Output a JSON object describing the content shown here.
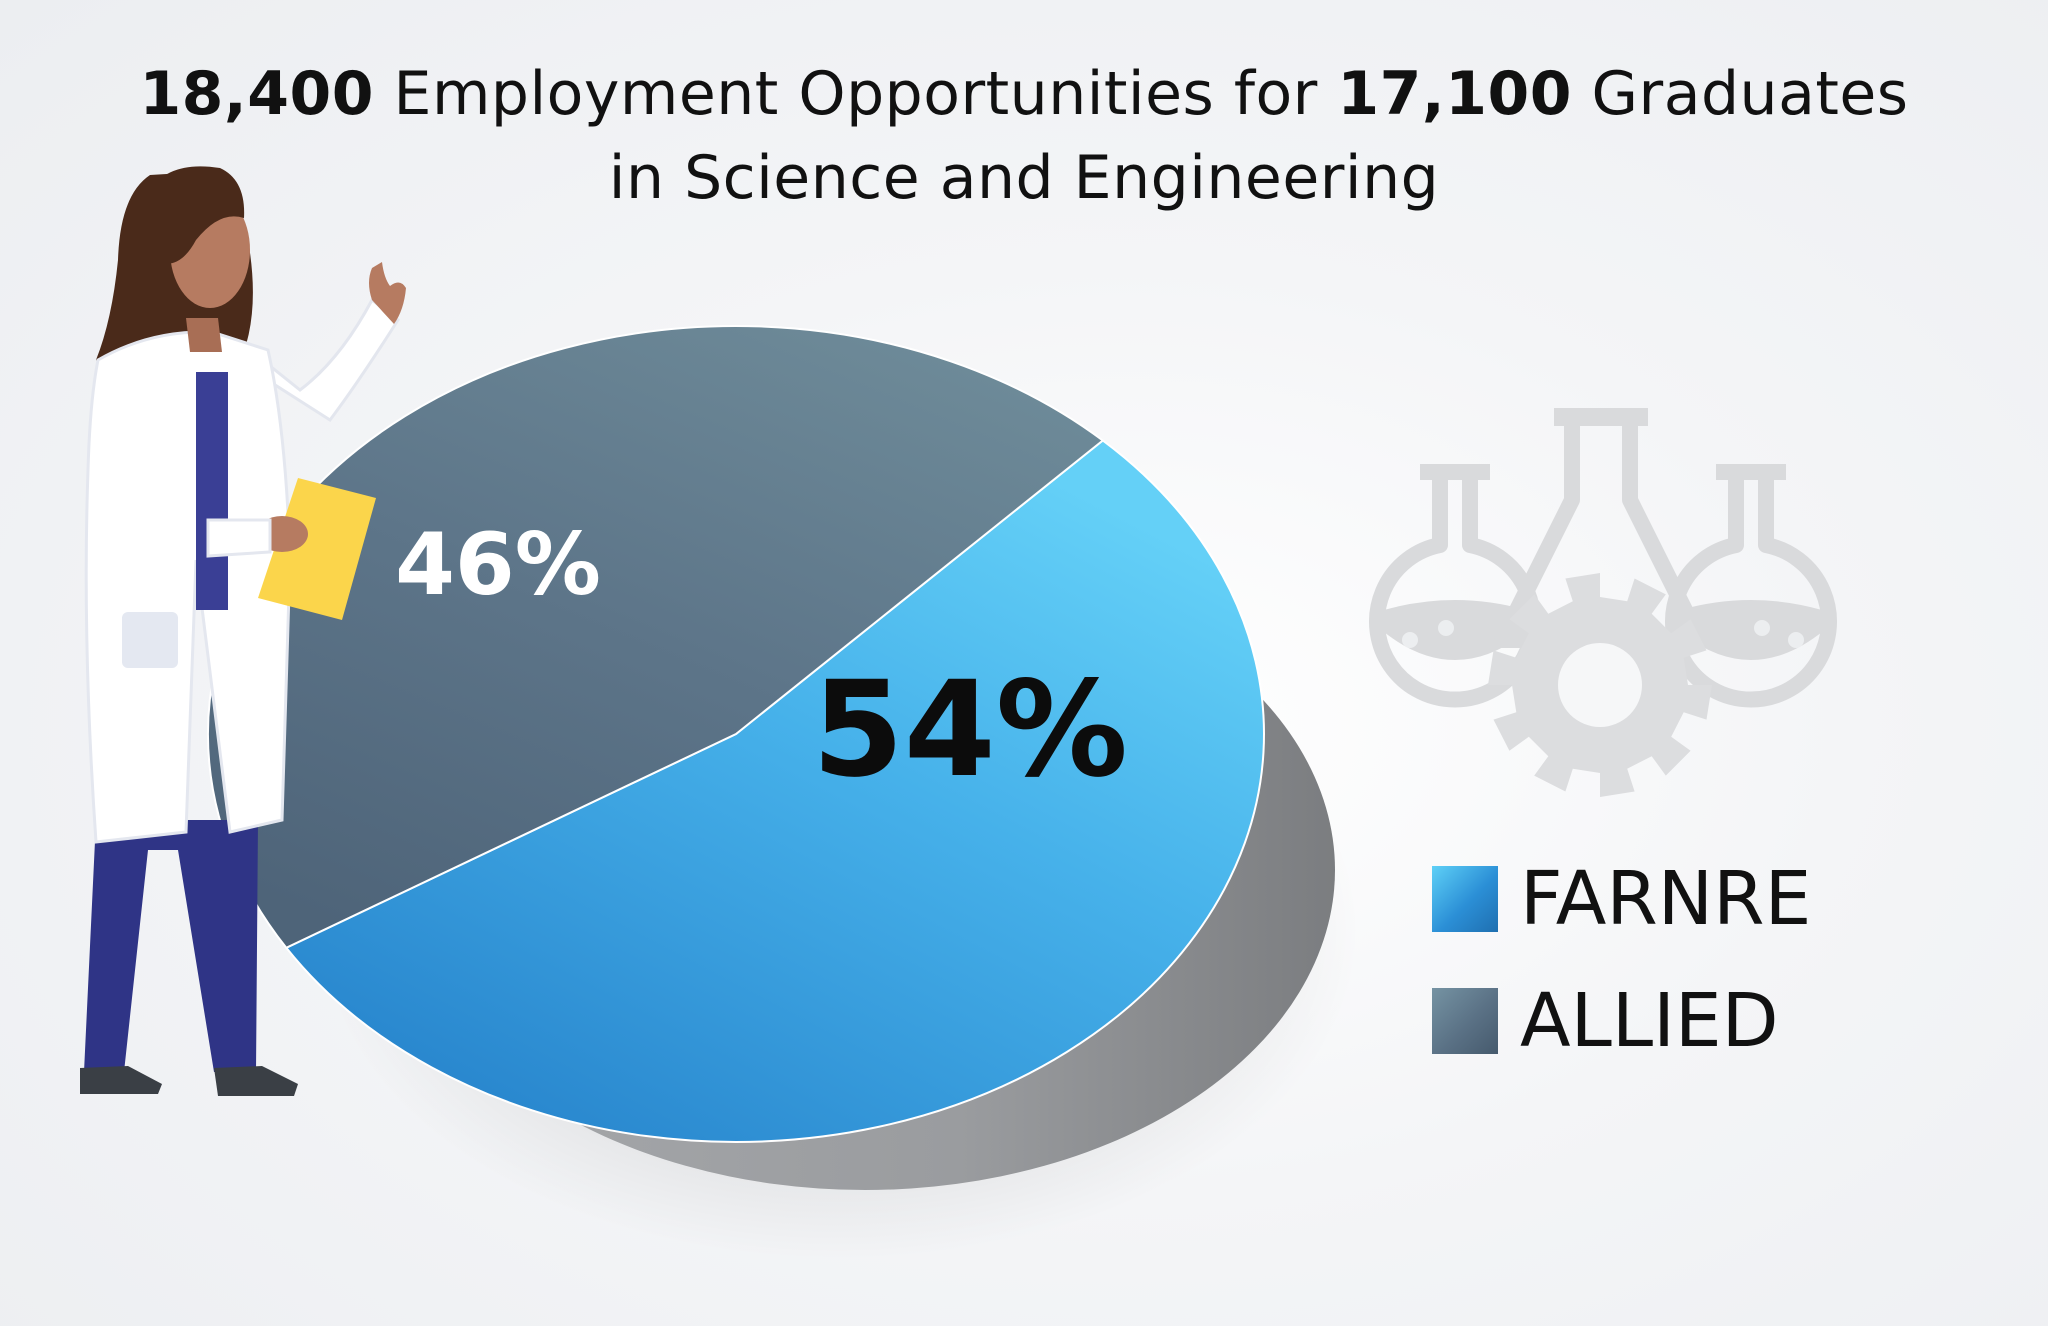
{
  "title": {
    "line1": {
      "count1": "18,400",
      "text1": " Employment Opportunities for ",
      "count2": "17,100",
      "text2": " Graduates"
    },
    "line2": "in Science and Engineering"
  },
  "colors": {
    "farnre": "#3fa9e8",
    "allied": "#627c8f",
    "side": "#8f9194"
  },
  "icons": [
    "scientist-illustration",
    "flasks-gear-icon"
  ],
  "chart_data": {
    "type": "pie",
    "title": "18,400 Employment Opportunities for 17,100 Graduates in Science and Engineering",
    "categories": [
      "FARNRE",
      "ALLIED"
    ],
    "values": [
      54,
      46
    ],
    "unit": "%",
    "data_labels": [
      "54%",
      "46%"
    ],
    "legend": {
      "placement": "right",
      "entries": [
        "FARNRE",
        "ALLIED"
      ]
    }
  }
}
